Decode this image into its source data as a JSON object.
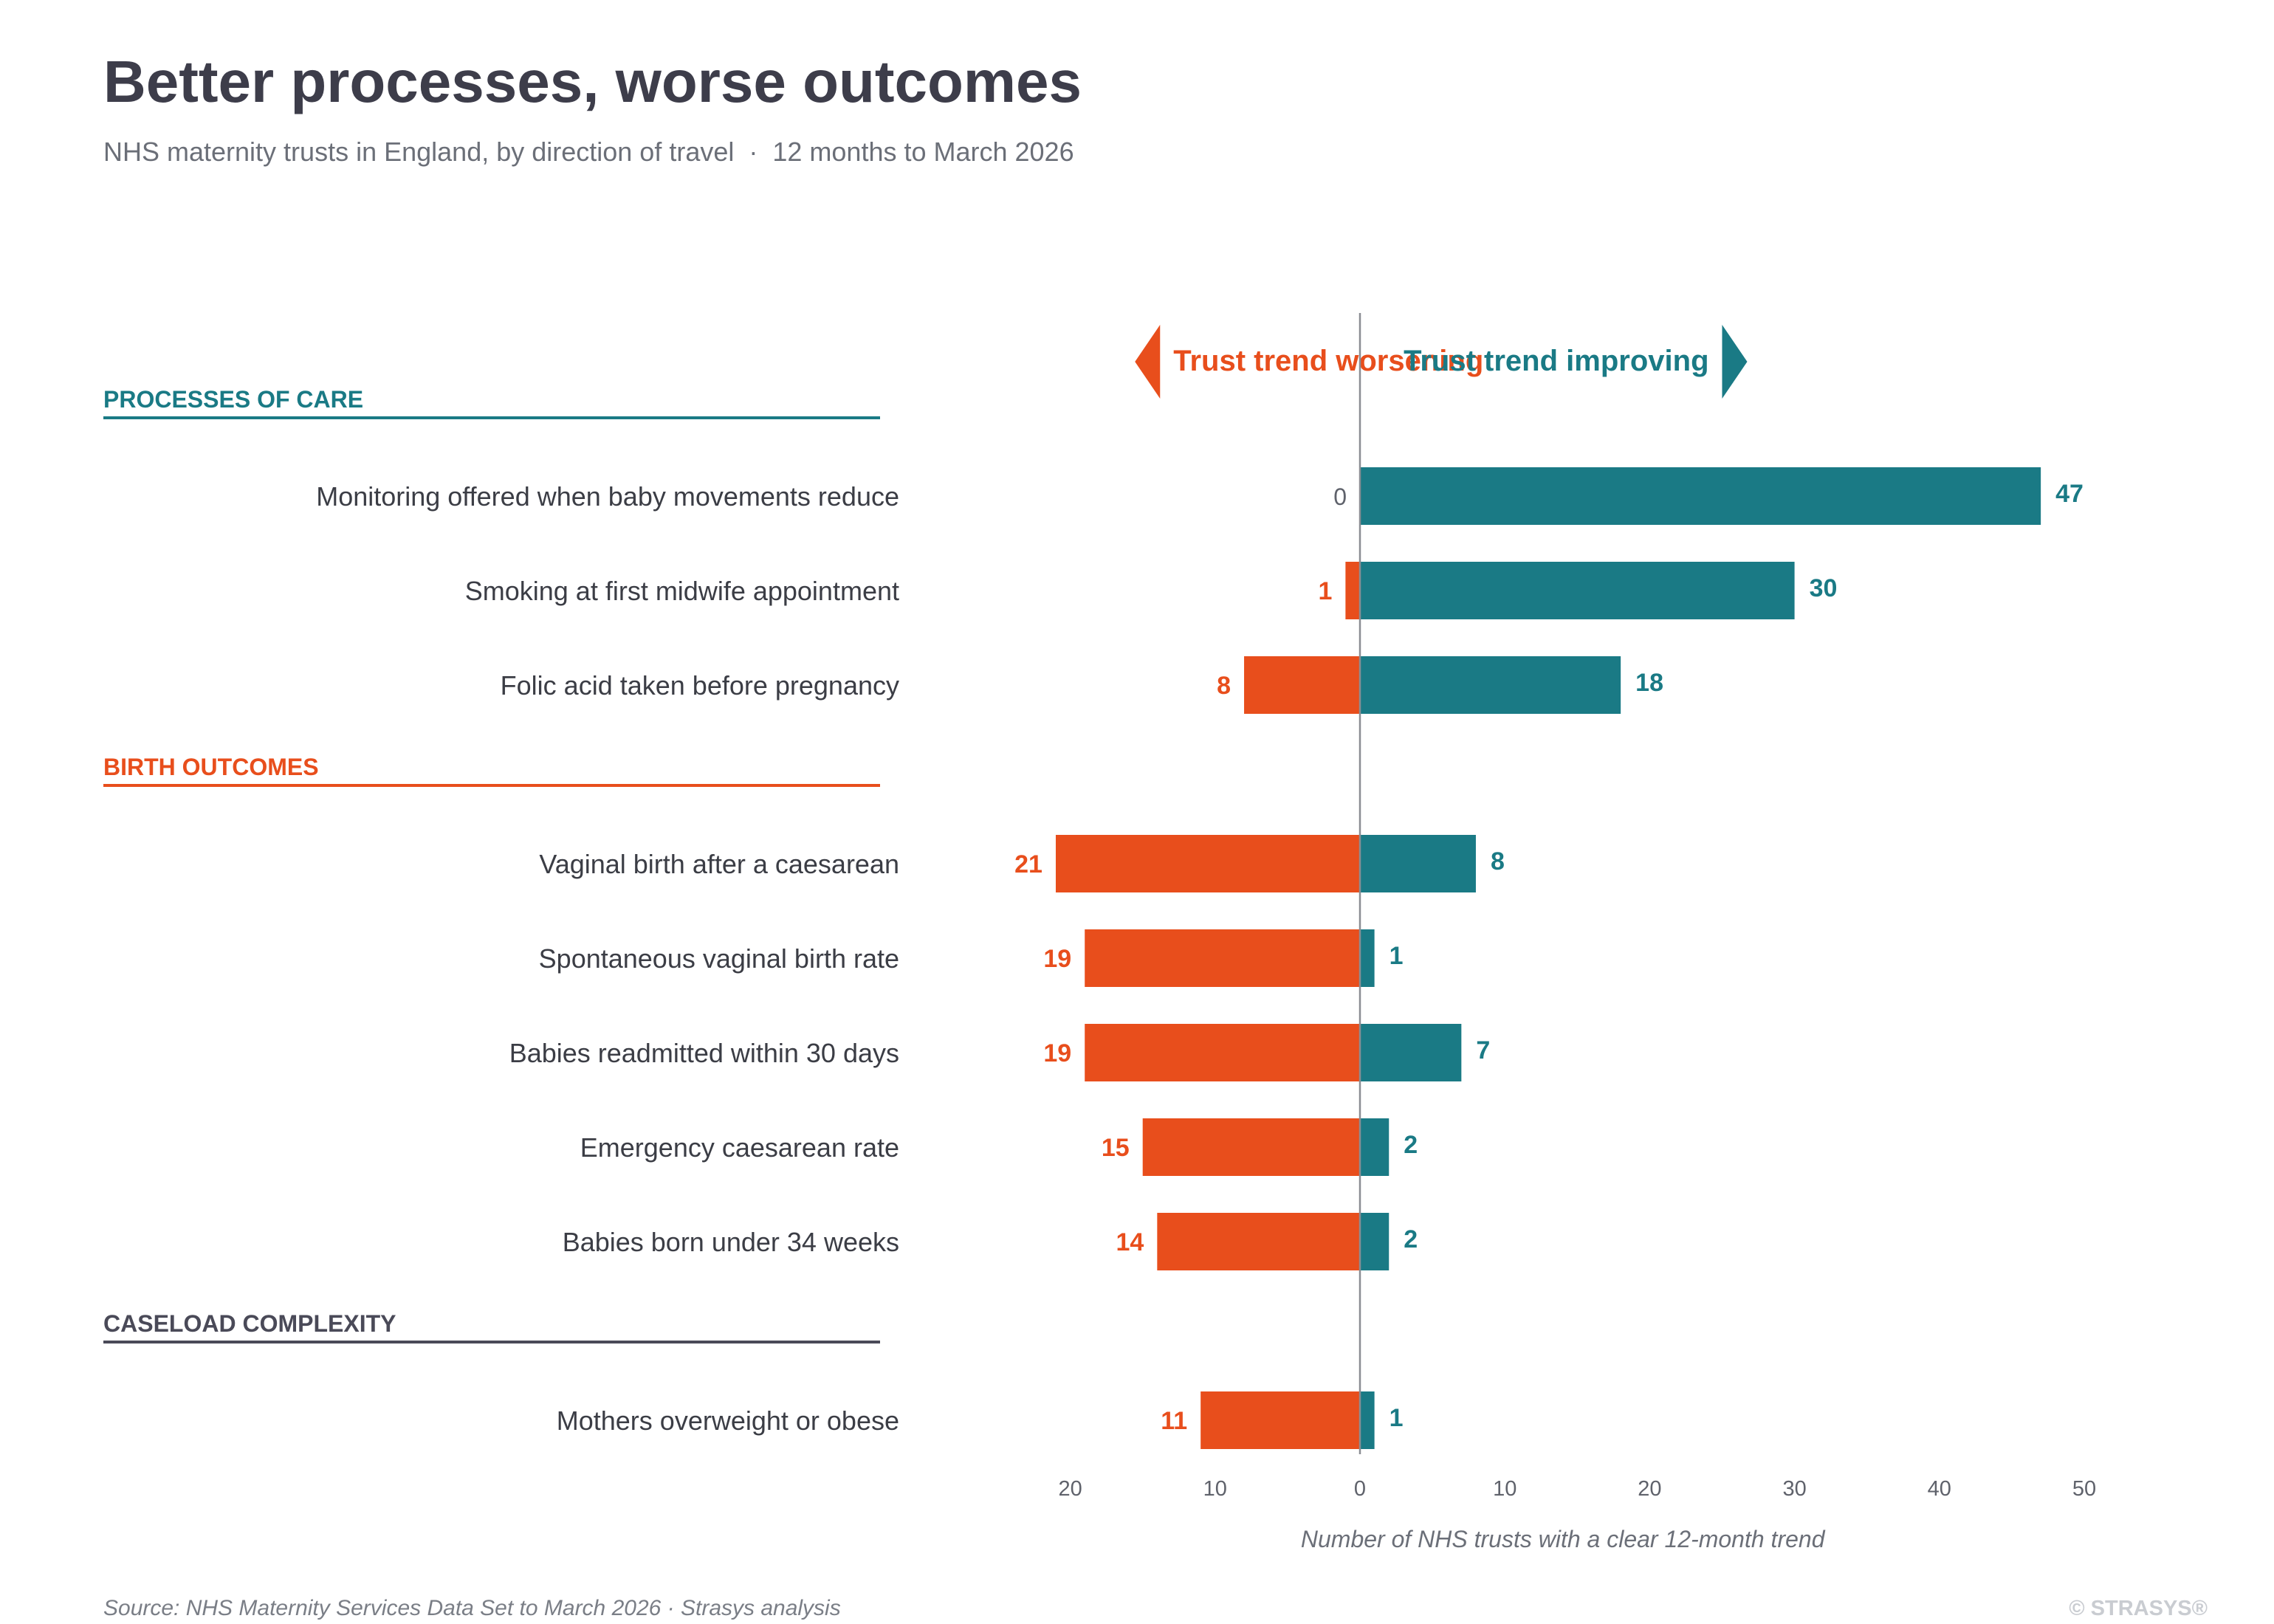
{
  "title": "Better processes, worse outcomes",
  "subtitle": "NHS maternity trusts in England, by direction of travel  ·  12 months to March 2026",
  "source": "Source: NHS Maternity Services Data Set to March 2026  ·  Strasys analysis",
  "brand": "© STRASYS®",
  "colors": {
    "worsening": "#e84e1c",
    "improving": "#1a7a85",
    "caseload": "#4a4a58",
    "axis": "#8a8d93"
  },
  "chart_data": {
    "type": "bar",
    "orientation": "horizontal",
    "stacking": "diverging",
    "direction_labels": {
      "worsening": "Trust trend worsening",
      "improving": "Trust trend improving"
    },
    "xlabel": "Number of NHS trusts with a clear 12-month trend",
    "xlim": [
      -20,
      50
    ],
    "x_ticks": [
      {
        "value": -20,
        "label": "20"
      },
      {
        "value": -10,
        "label": "10"
      },
      {
        "value": 0,
        "label": "0"
      },
      {
        "value": 10,
        "label": "10"
      },
      {
        "value": 20,
        "label": "20"
      },
      {
        "value": 30,
        "label": "30"
      },
      {
        "value": 40,
        "label": "40"
      },
      {
        "value": 50,
        "label": "50"
      }
    ],
    "grid": false,
    "groups": [
      {
        "name": "PROCESSES OF CARE",
        "color": "#1a7a85",
        "items": [
          {
            "label": "Monitoring offered when baby movements reduce",
            "worsening": 0,
            "improving": 47
          },
          {
            "label": "Smoking at first midwife appointment",
            "worsening": 1,
            "improving": 30
          },
          {
            "label": "Folic acid taken before pregnancy",
            "worsening": 8,
            "improving": 18
          }
        ]
      },
      {
        "name": "BIRTH OUTCOMES",
        "color": "#e84e1c",
        "items": [
          {
            "label": "Vaginal birth after a caesarean",
            "worsening": 21,
            "improving": 8
          },
          {
            "label": "Spontaneous vaginal birth rate",
            "worsening": 19,
            "improving": 1
          },
          {
            "label": "Babies readmitted within 30 days",
            "worsening": 19,
            "improving": 7
          },
          {
            "label": "Emergency caesarean rate",
            "worsening": 15,
            "improving": 2
          },
          {
            "label": "Babies born under 34 weeks",
            "worsening": 14,
            "improving": 2
          }
        ]
      },
      {
        "name": "CASELOAD COMPLEXITY",
        "color": "#4a4a58",
        "items": [
          {
            "label": "Mothers overweight or obese",
            "worsening": 11,
            "improving": 1
          }
        ]
      }
    ]
  }
}
